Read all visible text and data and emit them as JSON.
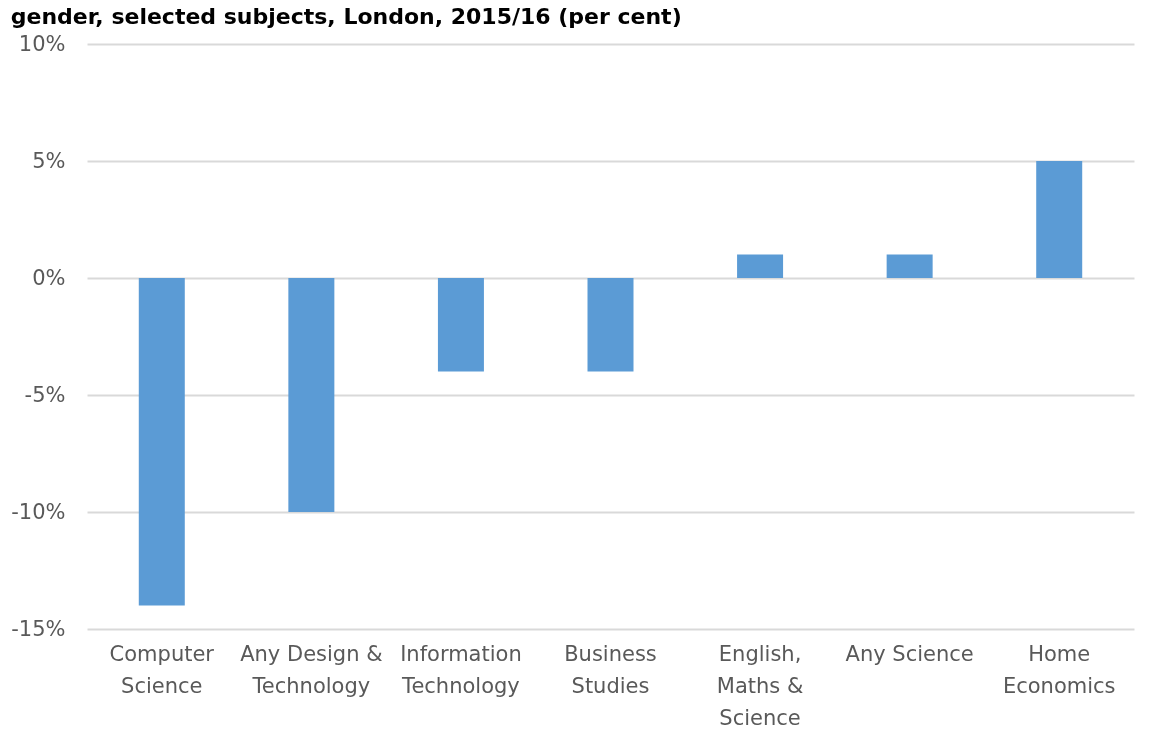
{
  "chart_data": {
    "type": "bar",
    "title": "gender, selected subjects, London, 2015/16 (per cent)",
    "categories": [
      "Computer Science",
      "Any Design & Technology",
      "Information Technology",
      "Business Studies",
      "English, Maths & Science",
      "Any Science",
      "Home Economics"
    ],
    "values": [
      -14,
      -10,
      -4,
      -4,
      1,
      1,
      5
    ],
    "color": "#5b9bd5",
    "ylim": [
      -15,
      10
    ],
    "yticks": [
      {
        "value": -15,
        "label": "-15%"
      },
      {
        "value": -10,
        "label": "-10%"
      },
      {
        "value": -5,
        "label": "-5%"
      },
      {
        "value": 0,
        "label": "0%"
      },
      {
        "value": 5,
        "label": "5%"
      },
      {
        "value": 10,
        "label": "10%"
      }
    ],
    "grid": "y"
  }
}
